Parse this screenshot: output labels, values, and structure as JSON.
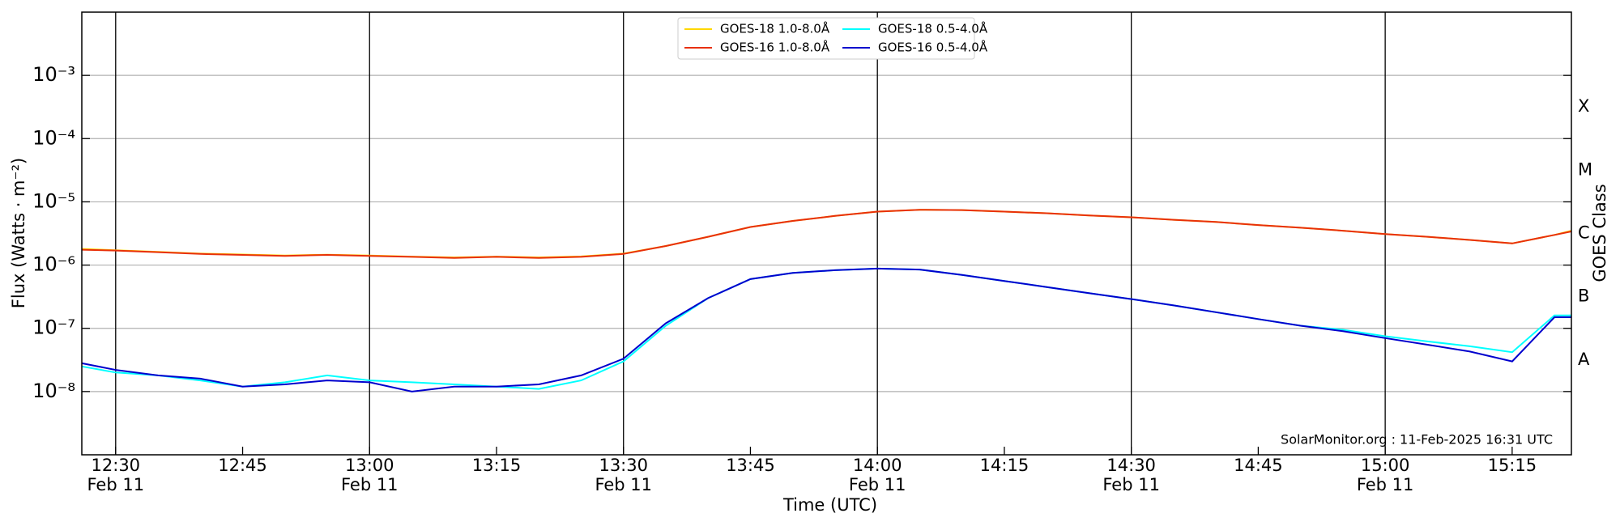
{
  "chart_data": {
    "type": "line",
    "ylabel": "Flux (Watts · m⁻²)",
    "xlabel": "Time (UTC)",
    "y2label": "GOES Class",
    "annotation": "SolarMonitor.org : 11-Feb-2025 16:31 UTC",
    "log_scale": true,
    "grid": true,
    "legend": "upper center",
    "x": [
      "12:26",
      "12:30",
      "12:35",
      "12:40",
      "12:45",
      "12:50",
      "12:55",
      "13:00",
      "13:05",
      "13:10",
      "13:15",
      "13:20",
      "13:25",
      "13:30",
      "13:35",
      "13:40",
      "13:45",
      "13:50",
      "13:55",
      "14:00",
      "14:05",
      "14:10",
      "14:15",
      "14:20",
      "14:25",
      "14:30",
      "14:35",
      "14:40",
      "14:45",
      "14:50",
      "14:55",
      "15:00",
      "15:05",
      "15:10",
      "15:15",
      "15:20",
      "15:22"
    ],
    "xlim": [
      "12:26",
      "15:22"
    ],
    "xticks": [
      {
        "value": "12:30",
        "label": [
          "12:30",
          "Feb 11"
        ]
      },
      {
        "value": "12:45",
        "label": [
          "12:45"
        ]
      },
      {
        "value": "13:00",
        "label": [
          "13:00",
          "Feb 11"
        ]
      },
      {
        "value": "13:15",
        "label": [
          "13:15"
        ]
      },
      {
        "value": "13:30",
        "label": [
          "13:30",
          "Feb 11"
        ]
      },
      {
        "value": "13:45",
        "label": [
          "13:45"
        ]
      },
      {
        "value": "14:00",
        "label": [
          "14:00",
          "Feb 11"
        ]
      },
      {
        "value": "14:15",
        "label": [
          "14:15"
        ]
      },
      {
        "value": "14:30",
        "label": [
          "14:30",
          "Feb 11"
        ]
      },
      {
        "value": "14:45",
        "label": [
          "14:45"
        ]
      },
      {
        "value": "15:00",
        "label": [
          "15:00",
          "Feb 11"
        ]
      },
      {
        "value": "15:15",
        "label": [
          "15:15"
        ]
      }
    ],
    "ylim": [
      1e-09,
      0.01
    ],
    "yticks": [
      {
        "value": 1e-08,
        "label": "10⁻⁸"
      },
      {
        "value": 1e-07,
        "label": "10⁻⁷"
      },
      {
        "value": 1e-06,
        "label": "10⁻⁶"
      },
      {
        "value": 1e-05,
        "label": "10⁻⁵"
      },
      {
        "value": 0.0001,
        "label": "10⁻⁴"
      },
      {
        "value": 0.001,
        "label": "10⁻³"
      }
    ],
    "y2ticks": [
      {
        "value": 1e-08,
        "label": "A"
      },
      {
        "value": 1e-07,
        "label": "B"
      },
      {
        "value": 1e-06,
        "label": "C"
      },
      {
        "value": 1e-05,
        "label": "M"
      },
      {
        "value": 0.0001,
        "label": "X"
      }
    ],
    "series": [
      {
        "name": "GOES-18 1.0-8.0Å",
        "color": "#ffd700",
        "values": [
          1.8e-06,
          1.72e-06,
          1.62e-06,
          1.52e-06,
          1.47e-06,
          1.42e-06,
          1.46e-06,
          1.42e-06,
          1.36e-06,
          1.32e-06,
          1.36e-06,
          1.32e-06,
          1.37e-06,
          1.52e-06,
          2e-06,
          2.8e-06,
          4e-06,
          5e-06,
          6e-06,
          7e-06,
          7.5e-06,
          7.4e-06,
          7e-06,
          6.6e-06,
          6.1e-06,
          5.7e-06,
          5.2e-06,
          4.8e-06,
          4.3e-06,
          3.9e-06,
          3.5e-06,
          3.1e-06,
          2.8e-06,
          2.5e-06,
          2.2e-06,
          3e-06,
          3.5e-06
        ]
      },
      {
        "name": "GOES-18 0.5-4.0Å",
        "color": "#00ffff",
        "values": [
          2.5e-08,
          2e-08,
          1.8e-08,
          1.5e-08,
          1.2e-08,
          1.4e-08,
          1.8e-08,
          1.5e-08,
          1.4e-08,
          1.3e-08,
          1.2e-08,
          1.1e-08,
          1.5e-08,
          3e-08,
          1.1e-07,
          3e-07,
          6e-07,
          7.5e-07,
          8.3e-07,
          8.8e-07,
          8.5e-07,
          7e-07,
          5.6e-07,
          4.5e-07,
          3.6e-07,
          2.9e-07,
          2.3e-07,
          1.8e-07,
          1.4e-07,
          1.1e-07,
          9.5e-08,
          7.5e-08,
          6.2e-08,
          5.2e-08,
          4.2e-08,
          1.6e-07,
          1.6e-07
        ]
      },
      {
        "name": "GOES-16 1.0-8.0Å",
        "color": "#e8300a",
        "values": [
          1.75e-06,
          1.7e-06,
          1.6e-06,
          1.5e-06,
          1.45e-06,
          1.4e-06,
          1.45e-06,
          1.4e-06,
          1.35e-06,
          1.3e-06,
          1.35e-06,
          1.3e-06,
          1.35e-06,
          1.5e-06,
          2e-06,
          2.8e-06,
          4e-06,
          5e-06,
          6e-06,
          7e-06,
          7.5e-06,
          7.4e-06,
          7e-06,
          6.6e-06,
          6.1e-06,
          5.7e-06,
          5.2e-06,
          4.8e-06,
          4.3e-06,
          3.9e-06,
          3.5e-06,
          3.1e-06,
          2.8e-06,
          2.5e-06,
          2.2e-06,
          3e-06,
          3.4e-06
        ]
      },
      {
        "name": "GOES-16 0.5-4.0Å",
        "color": "#0000cd",
        "values": [
          2.8e-08,
          2.2e-08,
          1.8e-08,
          1.6e-08,
          1.2e-08,
          1.3e-08,
          1.5e-08,
          1.4e-08,
          1e-08,
          1.2e-08,
          1.2e-08,
          1.3e-08,
          1.8e-08,
          3.3e-08,
          1.2e-07,
          3e-07,
          6e-07,
          7.5e-07,
          8.3e-07,
          8.8e-07,
          8.5e-07,
          7e-07,
          5.6e-07,
          4.5e-07,
          3.6e-07,
          2.9e-07,
          2.3e-07,
          1.8e-07,
          1.4e-07,
          1.1e-07,
          9e-08,
          7e-08,
          5.5e-08,
          4.3e-08,
          3e-08,
          1.5e-07,
          1.5e-07
        ]
      }
    ]
  }
}
